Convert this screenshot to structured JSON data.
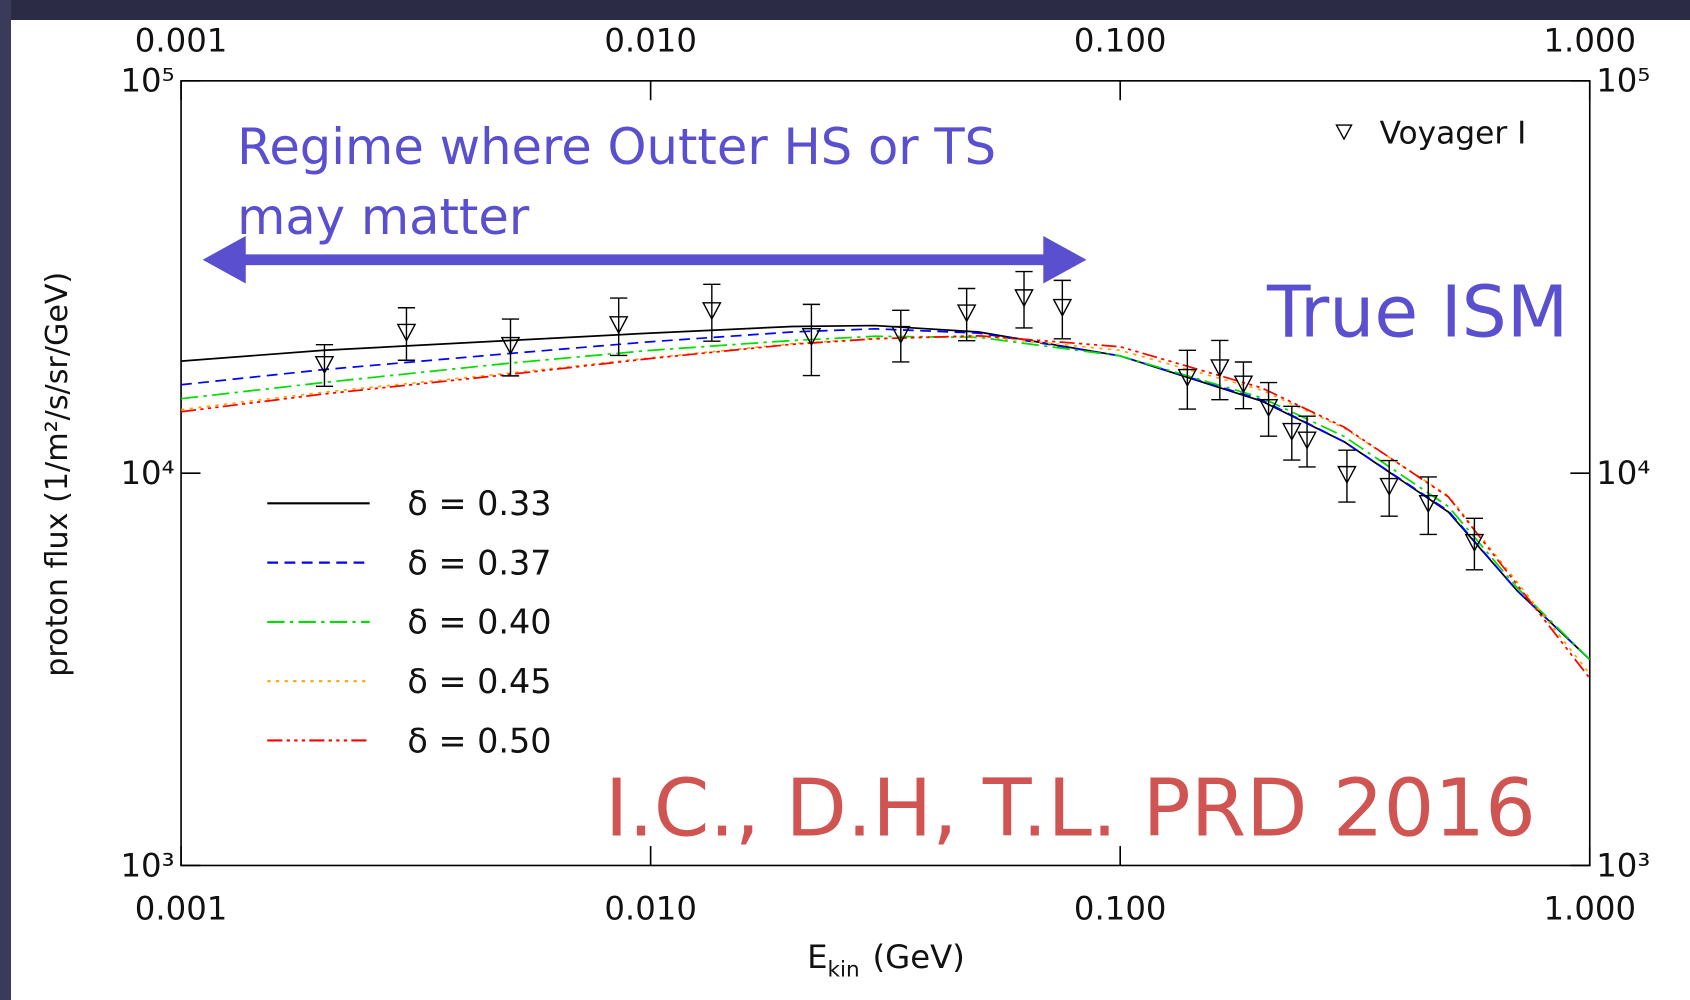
{
  "chart_data": {
    "type": "line",
    "xlog": true,
    "ylog": true,
    "xlim": [
      0.001,
      1.0
    ],
    "ylim": [
      1000,
      100000
    ],
    "xticks": [
      {
        "value": 0.001,
        "label": "0.001"
      },
      {
        "value": 0.01,
        "label": "0.010"
      },
      {
        "value": 0.1,
        "label": "0.100"
      },
      {
        "value": 1.0,
        "label": "1.000"
      }
    ],
    "yticks": [
      {
        "value": 1000,
        "label": "10³"
      },
      {
        "value": 10000,
        "label": "10⁴"
      },
      {
        "value": 100000,
        "label": "10⁵"
      }
    ],
    "x_label": [
      "E",
      "kin",
      "(GeV)"
    ],
    "y_label": "proton flux (1/m²/s/sr/GeV)",
    "x": [
      0.001,
      0.002,
      0.005,
      0.01,
      0.02,
      0.03,
      0.05,
      0.1,
      0.2,
      0.3,
      0.5,
      0.7,
      1.0
    ],
    "series": [
      {
        "name": "δ = 0.33",
        "color": "#000000",
        "dash": "solid",
        "values": [
          19300,
          20560,
          21780,
          22750,
          23650,
          23780,
          22900,
          19900,
          15270,
          12020,
          7960,
          5020,
          3350
        ]
      },
      {
        "name": "δ = 0.37",
        "color": "#0000ff",
        "dash": "dash",
        "values": [
          16800,
          18350,
          20180,
          21630,
          22900,
          23330,
          22750,
          19900,
          15370,
          12020,
          8010,
          5020,
          3350
        ]
      },
      {
        "name": "δ = 0.40",
        "color": "#00dd00",
        "dash": "dashdot",
        "values": [
          15480,
          17010,
          19070,
          20560,
          21780,
          22330,
          22190,
          19900,
          15570,
          12400,
          8220,
          5110,
          3350
        ]
      },
      {
        "name": "δ = 0.45",
        "color": "#ffa500",
        "dash": "dot",
        "values": [
          14520,
          16070,
          17990,
          19680,
          21380,
          22030,
          22330,
          20560,
          16280,
          13030,
          8750,
          5280,
          3080
        ]
      },
      {
        "name": "δ = 0.50",
        "color": "#ff0000",
        "dash": "dashdotdotdot",
        "values": [
          14340,
          15900,
          17850,
          19600,
          21300,
          22000,
          22400,
          21000,
          16500,
          13100,
          8700,
          5200,
          3000
        ]
      }
    ],
    "points": {
      "name": "Voyager I",
      "color": "#000000",
      "marker": "triangle-down",
      "x": [
        0.00202,
        0.00302,
        0.00503,
        0.00855,
        0.0135,
        0.022,
        0.0341,
        0.0471,
        0.0624,
        0.0753,
        0.139,
        0.163,
        0.183,
        0.207,
        0.232,
        0.25,
        0.304,
        0.374,
        0.453,
        0.568
      ],
      "values": [
        18950,
        22900,
        21200,
        23950,
        26000,
        22330,
        22610,
        25660,
        28050,
        26500,
        17570,
        18590,
        16900,
        14720,
        12800,
        12170,
        9940,
        9270,
        8380,
        6670
      ],
      "errors": [
        2300,
        3500,
        3500,
        4000,
        4300,
        4600,
        3400,
        3900,
        4600,
        4500,
        3000,
        3200,
        2300,
        2300,
        2000,
        1800,
        1500,
        1500,
        1400,
        1000
      ]
    },
    "annotations": {
      "regime": [
        "Regime where Outter HS or TS",
        "may matter"
      ],
      "true_ism": "True ISM",
      "citation": "I.C., D.H, T.L. PRD 2016"
    }
  }
}
